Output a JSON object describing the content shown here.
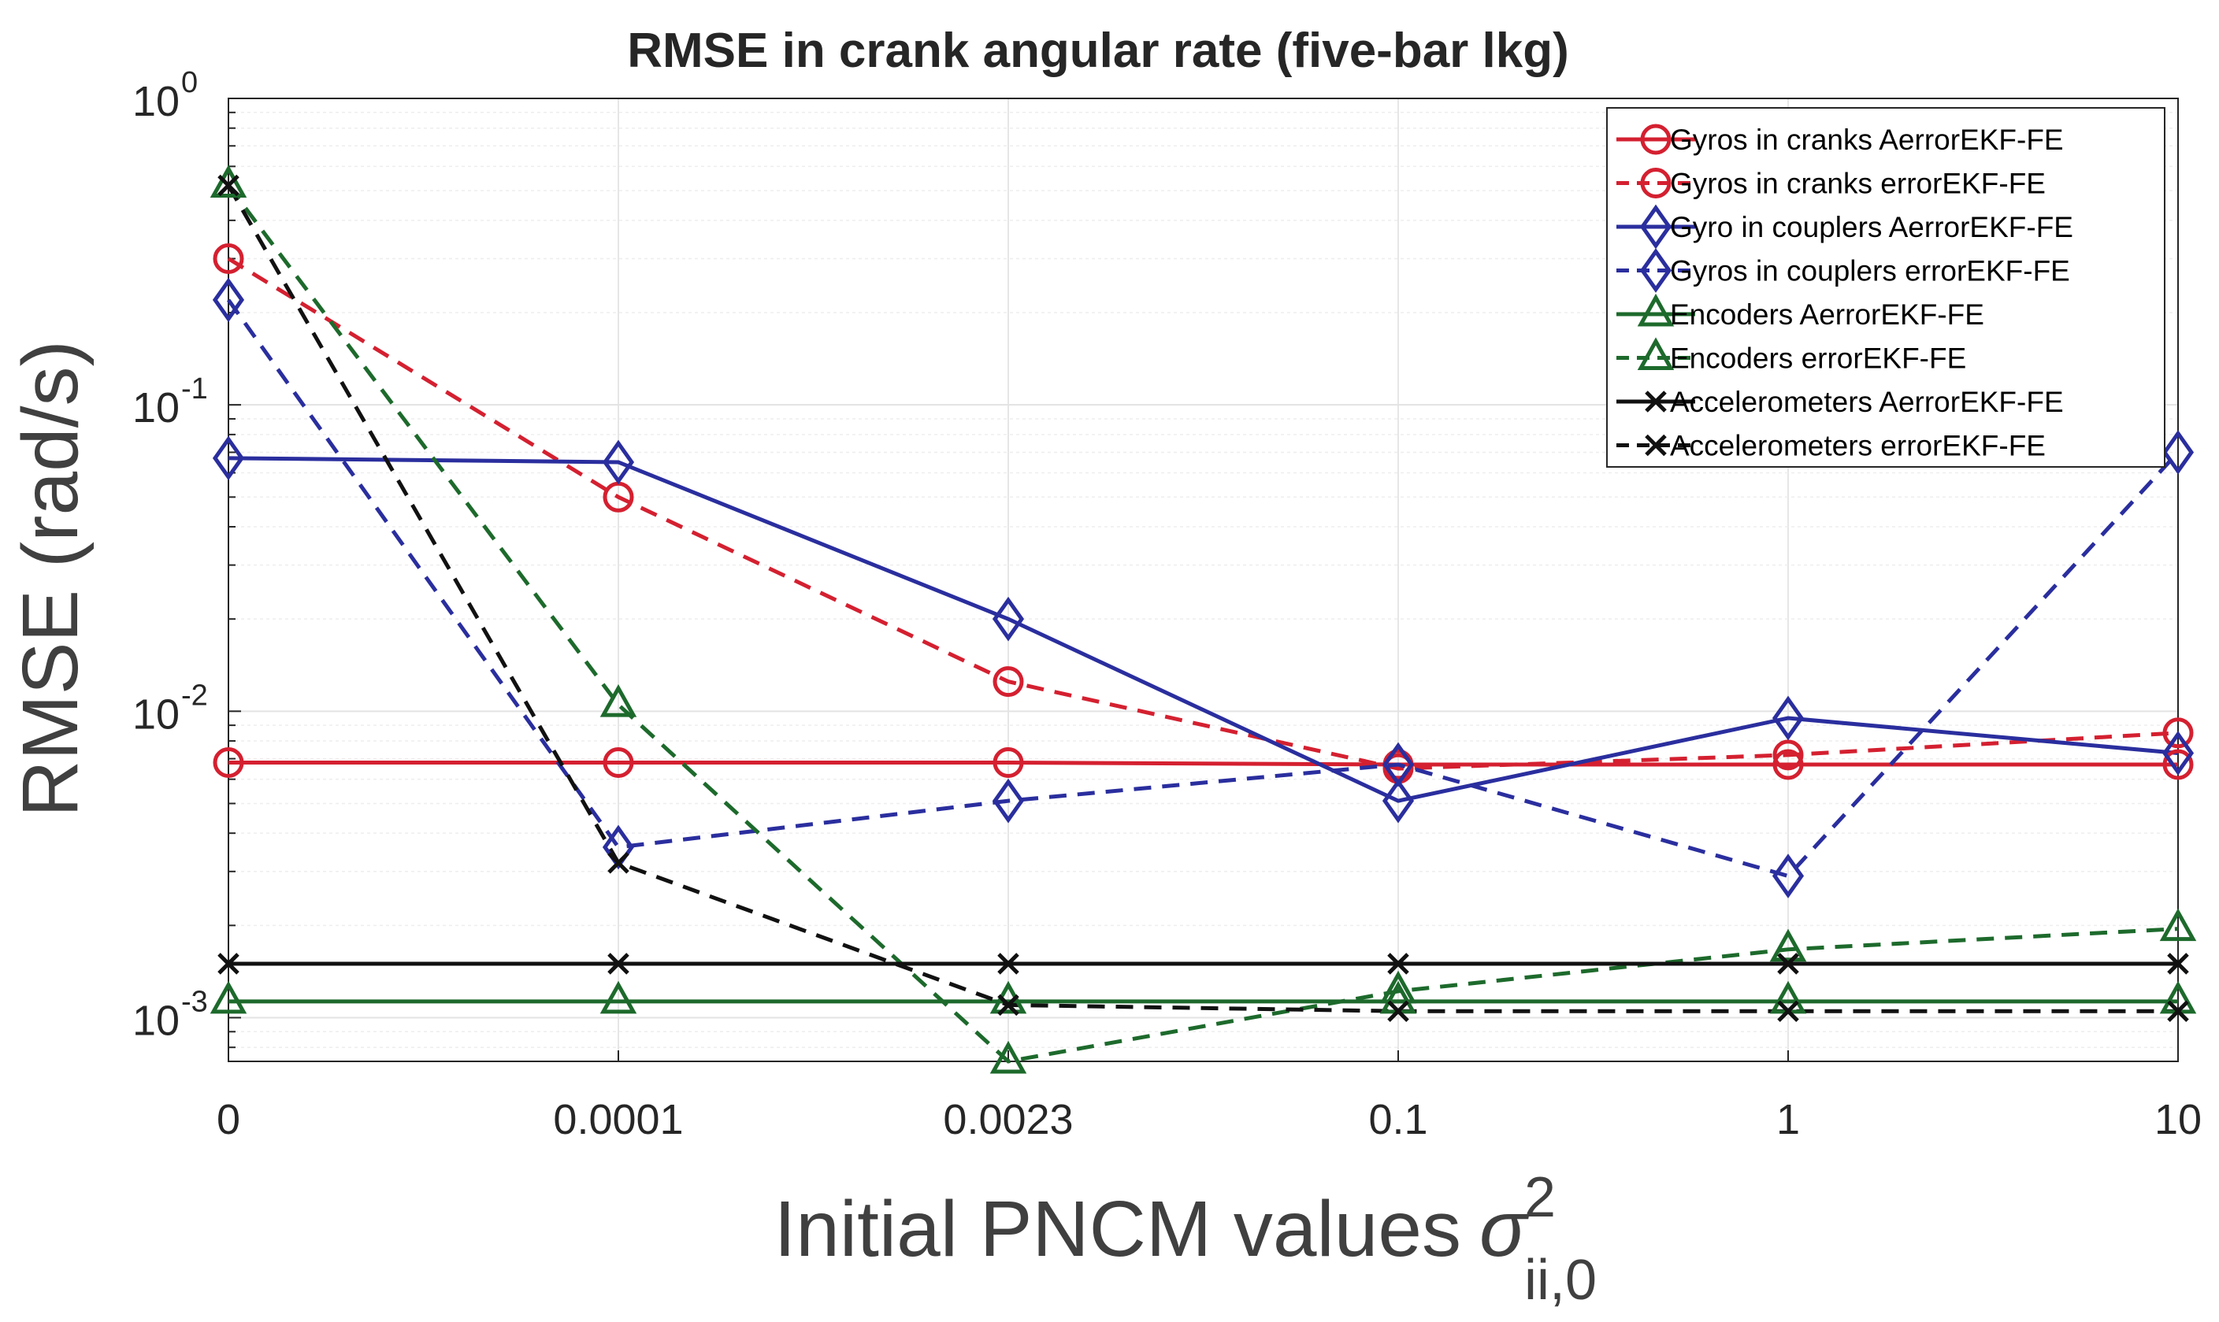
{
  "chart_data": {
    "type": "line",
    "title": "RMSE in crank angular rate (five-bar lkg)",
    "xlabel": "Initial PNCM values",
    "xlabel_symbol": "σ",
    "xlabel_superscript": "2",
    "xlabel_subscript": "ii,0",
    "ylabel": "RMSE (rad/s)",
    "yscale": "log",
    "ylim": [
      0.00072,
      1.0
    ],
    "grid": true,
    "legend_position": "top-right",
    "categories": [
      "0",
      "0.0001",
      "0.0023",
      "0.1",
      "1",
      "10"
    ],
    "yticks": [
      {
        "value": 0.001,
        "base": "10",
        "exp": "-3"
      },
      {
        "value": 0.01,
        "base": "10",
        "exp": "-2"
      },
      {
        "value": 0.1,
        "base": "10",
        "exp": "-1"
      },
      {
        "value": 1,
        "base": "10",
        "exp": "0"
      }
    ],
    "series": [
      {
        "name": "Gyros in cranks AerrorEKF-FE",
        "color": "#d42030",
        "dash": "solid",
        "marker": "circle",
        "values": [
          0.0068,
          0.0068,
          0.0068,
          0.0067,
          0.0067,
          0.0067
        ]
      },
      {
        "name": "Gyros in cranks errorEKF-FE",
        "color": "#d42030",
        "dash": "dashed",
        "marker": "circle",
        "values": [
          0.3,
          0.05,
          0.0125,
          0.0065,
          0.0072,
          0.0085
        ]
      },
      {
        "name": "Gyro in couplers AerrorEKF-FE",
        "color": "#2a2e9e",
        "dash": "solid",
        "marker": "diamond",
        "values": [
          0.067,
          0.065,
          0.02,
          0.0051,
          0.0095,
          0.0073
        ]
      },
      {
        "name": "Gyros in couplers errorEKF-FE",
        "color": "#2a2e9e",
        "dash": "dashed",
        "marker": "diamond",
        "values": [
          0.22,
          0.0036,
          0.0051,
          0.0067,
          0.0029,
          0.07
        ]
      },
      {
        "name": "Encoders AerrorEKF-FE",
        "color": "#1d6a2c",
        "dash": "solid",
        "marker": "triangle",
        "values": [
          0.00113,
          0.00113,
          0.00113,
          0.00113,
          0.00113,
          0.00113
        ]
      },
      {
        "name": "Encoders errorEKF-FE",
        "color": "#1d6a2c",
        "dash": "dashed",
        "marker": "triangle",
        "values": [
          0.52,
          0.0105,
          0.00072,
          0.00122,
          0.00167,
          0.00195
        ]
      },
      {
        "name": "Accelerometers AerrorEKF-FE",
        "color": "#111111",
        "dash": "solid",
        "marker": "x",
        "values": [
          0.0015,
          0.0015,
          0.0015,
          0.0015,
          0.0015,
          0.0015
        ]
      },
      {
        "name": "Accelerometers errorEKF-FE",
        "color": "#111111",
        "dash": "dashed",
        "marker": "x",
        "values": [
          0.52,
          0.0032,
          0.0011,
          0.00105,
          0.00105,
          0.00105
        ]
      }
    ]
  }
}
